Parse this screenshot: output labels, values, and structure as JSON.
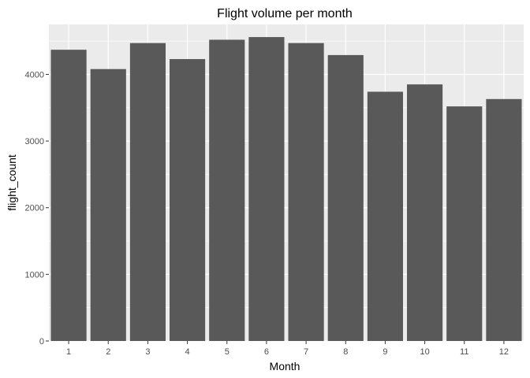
{
  "chart_data": {
    "type": "bar",
    "title": "Flight volume per month",
    "xlabel": "Month",
    "ylabel": "flight_count",
    "categories": [
      "1",
      "2",
      "3",
      "4",
      "5",
      "6",
      "7",
      "8",
      "9",
      "10",
      "11",
      "12"
    ],
    "values": [
      4370,
      4080,
      4470,
      4230,
      4520,
      4560,
      4470,
      4290,
      3740,
      3850,
      3520,
      3630
    ],
    "ylim": [
      0,
      4750
    ],
    "yticks": [
      0,
      1000,
      2000,
      3000,
      4000
    ],
    "grid": true,
    "legend": "none",
    "colors": {
      "panel": "#ebebeb",
      "grid": "#ffffff",
      "bar": "#595959"
    }
  }
}
